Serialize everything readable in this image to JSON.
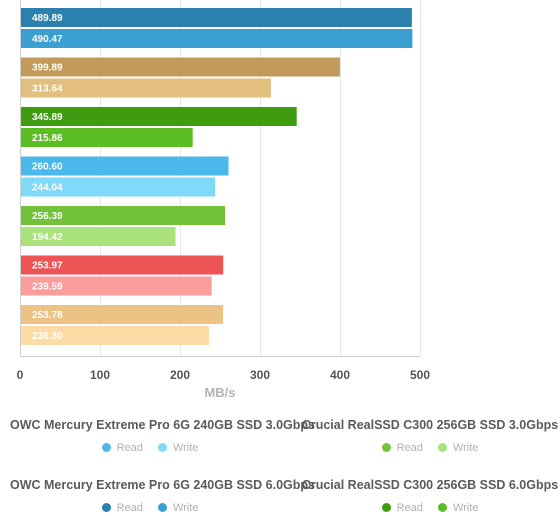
{
  "chart_data": {
    "type": "bar",
    "orientation": "horizontal",
    "xlabel": "MB/s",
    "xlim": [
      0,
      500
    ],
    "xticks": [
      0,
      100,
      200,
      300,
      400,
      500
    ],
    "grid": true,
    "groups": [
      {
        "bars": [
          {
            "value": 489.89,
            "label": "489.89",
            "color": "#2a81ad"
          },
          {
            "value": 490.47,
            "label": "490.47",
            "color": "#3c9fd2"
          }
        ]
      },
      {
        "bars": [
          {
            "value": 399.89,
            "label": "399.89",
            "color": "#c29a5a"
          },
          {
            "value": 313.64,
            "label": "313.64",
            "color": "#e2bf7f"
          }
        ]
      },
      {
        "bars": [
          {
            "value": 345.89,
            "label": "345.89",
            "color": "#3f9c0f"
          },
          {
            "value": 215.86,
            "label": "215.86",
            "color": "#5cbd25"
          }
        ]
      },
      {
        "bars": [
          {
            "value": 260.6,
            "label": "260.60",
            "color": "#4ab8ea"
          },
          {
            "value": 244.04,
            "label": "244.04",
            "color": "#7fd9f9"
          }
        ]
      },
      {
        "bars": [
          {
            "value": 256.39,
            "label": "256.39",
            "color": "#74c23c"
          },
          {
            "value": 194.42,
            "label": "194.42",
            "color": "#a9e27a"
          }
        ]
      },
      {
        "bars": [
          {
            "value": 253.97,
            "label": "253.97",
            "color": "#ee5356"
          },
          {
            "value": 239.59,
            "label": "239.59",
            "color": "#fc9c9b"
          }
        ]
      },
      {
        "bars": [
          {
            "value": 253.78,
            "label": "253.78",
            "color": "#edc285"
          },
          {
            "value": 236.3,
            "label": "236.30",
            "color": "#fcdca4"
          }
        ]
      }
    ]
  },
  "legends": [
    {
      "title": "OWC Mercury Extreme Pro 6G 240GB SSD 3.0Gbps",
      "items": [
        {
          "label": "Read",
          "color": "#4ab8ea"
        },
        {
          "label": "Write",
          "color": "#7fd9f9"
        }
      ]
    },
    {
      "title": "Crucial RealSSD C300 256GB SSD 3.0Gbps",
      "items": [
        {
          "label": "Read",
          "color": "#74c23c"
        },
        {
          "label": "Write",
          "color": "#a9e27a"
        }
      ]
    },
    {
      "title": "OWC Mercury Extreme Pro 6G 240GB SSD 6.0Gbps",
      "items": [
        {
          "label": "Read",
          "color": "#2a81ad"
        },
        {
          "label": "Write",
          "color": "#3c9fd2"
        }
      ]
    },
    {
      "title": "Crucial RealSSD C300 256GB SSD 6.0Gbps",
      "items": [
        {
          "label": "Read",
          "color": "#3f9c0f"
        },
        {
          "label": "Write",
          "color": "#5cbd25"
        }
      ]
    }
  ]
}
